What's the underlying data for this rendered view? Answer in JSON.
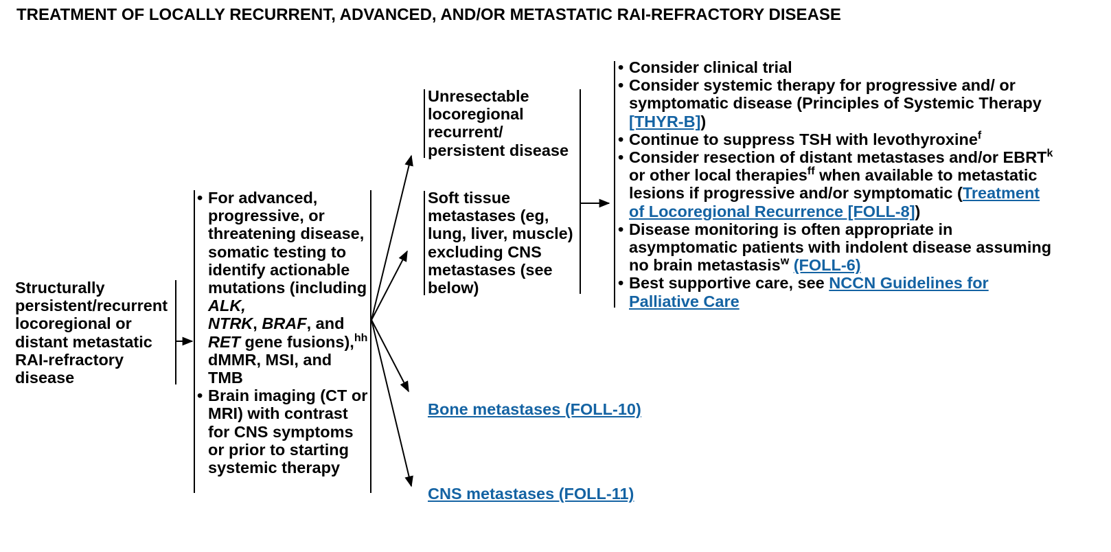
{
  "page_title": "TREATMENT OF LOCALLY RECURRENT, ADVANCED, AND/OR METASTATIC RAI-REFRACTORY DISEASE",
  "colors": {
    "link": "#1463a3",
    "text": "#000000",
    "background": "#ffffff"
  },
  "start_node": {
    "text": "Structurally persistent/recurrent locoregional or distant metastatic RAI-refractory disease"
  },
  "workup": {
    "item1": {
      "p1": "For advanced, progressive, or threatening disease, somatic testing to identify actionable mutations (including ",
      "alk": "ALK,",
      "ntrk": "NTRK",
      "comma1": ", ",
      "braf": "BRAF",
      "p2": ", and ",
      "ret": "RET",
      "p3": " gene fusions),",
      "sup": "hh",
      "p4": " dMMR, MSI, and TMB"
    },
    "item2": "Brain imaging (CT or MRI) with contrast for CNS symptoms or prior to starting systemic therapy"
  },
  "branches": {
    "unresectable": "Unresectable locoregional recurrent/ persistent disease",
    "soft_tissue": "Soft tissue metastases (eg, lung, liver, muscle) excluding CNS metastases (see below)",
    "bone_link": "Bone metastases (FOLL-10)",
    "cns_link": "CNS metastases (FOLL-11)"
  },
  "treatment": {
    "clinical_trial": "Consider clinical trial",
    "systemic": {
      "before": "Consider systemic therapy for progressive and/ or symptomatic disease (Principles of Systemic Therapy ",
      "link": "[THYR-B]",
      "after": ")"
    },
    "tsh": {
      "text": "Continue to suppress TSH with levothyroxine",
      "sup": "f"
    },
    "resection": {
      "p1": "Consider resection of distant metastases and/or EBRT",
      "sup1": "k",
      "p2": " or other local therapies",
      "sup2": "ff",
      "p3": " when available to metastatic lesions if progressive and/or symptomatic (",
      "link": "Treatment of Locoregional Recurrence [FOLL-8]",
      "p4": ")"
    },
    "monitoring": {
      "text": "Disease monitoring is often appropriate in asymptomatic patients with indolent disease assuming no brain metastasis",
      "sup": "w",
      "space": " ",
      "link": "(FOLL-6)"
    },
    "supportive": {
      "text": "Best supportive care, see ",
      "link": "NCCN Guidelines for Palliative Care"
    }
  }
}
